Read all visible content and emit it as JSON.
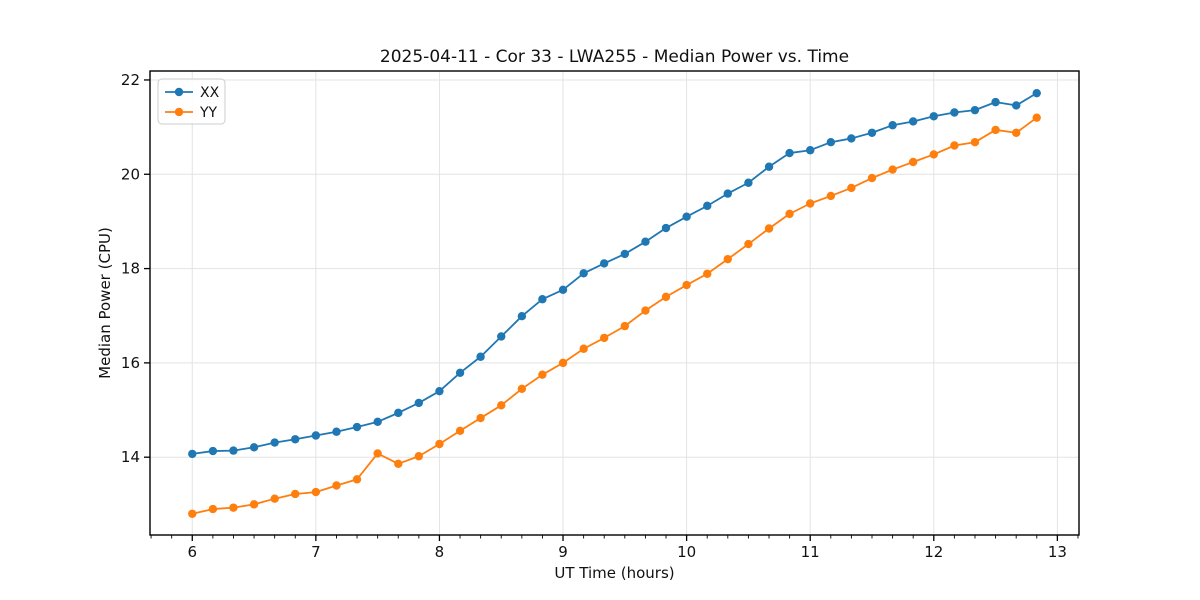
{
  "figure_title": "2025-04-11 - Cor 33 - LWA255 - Median Power vs. Time",
  "chart_data": {
    "type": "line",
    "title": "2025-04-11 - Cor 33 - LWA255 - Median Power vs. Time",
    "xlabel": "UT Time (hours)",
    "ylabel": "Median Power (CPU)",
    "xlim": [
      5.658,
      13.175
    ],
    "ylim": [
      12.35,
      22.19
    ],
    "xticks": [
      6,
      7,
      8,
      9,
      10,
      11,
      12,
      13
    ],
    "yticks": [
      14,
      16,
      18,
      20,
      22
    ],
    "x_minor_divisions": 6,
    "grid": true,
    "legend_position": "upper left",
    "marker": "circle",
    "x": [
      6,
      6.167,
      6.333,
      6.5,
      6.667,
      6.833,
      7,
      7.167,
      7.333,
      7.5,
      7.667,
      7.833,
      8,
      8.167,
      8.333,
      8.5,
      8.667,
      8.833,
      9,
      9.167,
      9.333,
      9.5,
      9.667,
      9.833,
      10,
      10.167,
      10.333,
      10.5,
      10.667,
      10.833,
      11,
      11.167,
      11.333,
      11.5,
      11.667,
      11.833,
      12,
      12.167,
      12.333,
      12.5,
      12.667,
      12.833
    ],
    "series": [
      {
        "name": "XX",
        "color": "#1f77b4",
        "values": [
          14.07,
          14.13,
          14.14,
          14.21,
          14.31,
          14.38,
          14.46,
          14.54,
          14.64,
          14.75,
          14.94,
          15.15,
          15.4,
          15.79,
          16.13,
          16.56,
          16.99,
          17.35,
          17.55,
          17.9,
          18.11,
          18.31,
          18.57,
          18.86,
          19.1,
          19.33,
          19.59,
          19.82,
          20.16,
          20.45,
          20.51,
          20.68,
          20.76,
          20.88,
          21.04,
          21.12,
          21.23,
          21.31,
          21.36,
          21.53,
          21.46,
          21.72
        ]
      },
      {
        "name": "YY",
        "color": "#ff7f0e",
        "values": [
          12.8,
          12.9,
          12.93,
          13.0,
          13.12,
          13.22,
          13.26,
          13.4,
          13.53,
          14.08,
          13.86,
          14.02,
          14.28,
          14.56,
          14.83,
          15.1,
          15.45,
          15.75,
          16.0,
          16.3,
          16.53,
          16.78,
          17.11,
          17.4,
          17.65,
          17.89,
          18.2,
          18.52,
          18.85,
          19.16,
          19.38,
          19.54,
          19.71,
          19.92,
          20.1,
          20.26,
          20.42,
          20.61,
          20.68,
          20.94,
          20.88,
          21.2
        ]
      }
    ],
    "colors": {
      "axis": "#000000",
      "grid": "#e3e3e3",
      "text": "#111111",
      "legend_border": "#cccccc",
      "background": "#ffffff"
    }
  }
}
